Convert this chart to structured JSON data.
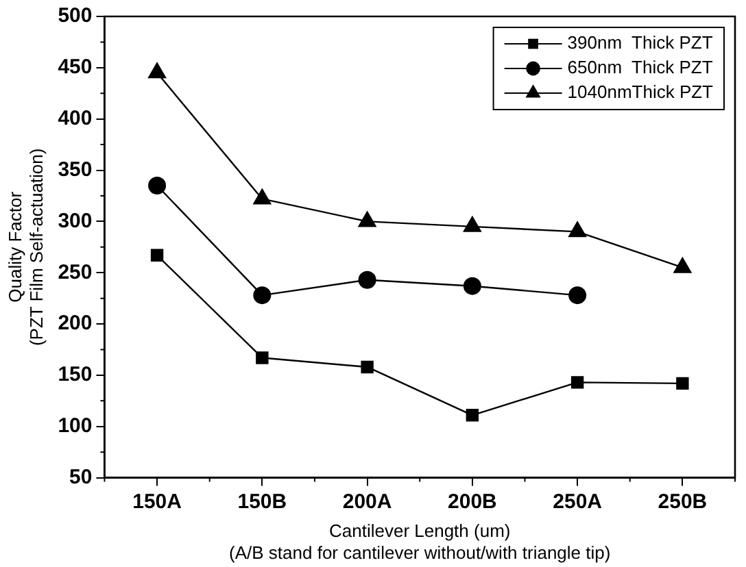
{
  "chart_data": {
    "type": "line",
    "xlabel": "Cantilever Length (um)\n(A/B stand for cantilever without/with triangle tip)",
    "ylabel": "Quality Factor\n(PZT Film Self-actuation)",
    "categories": [
      "150A",
      "150B",
      "200A",
      "200B",
      "250A",
      "250B"
    ],
    "series": [
      {
        "name": "390nm  Thick PZT",
        "color": "#000000",
        "marker": "square",
        "values": [
          267,
          167,
          158,
          111,
          143,
          142
        ]
      },
      {
        "name": "650nm  Thick PZT",
        "color": "#000000",
        "marker": "circle",
        "values": [
          335,
          228,
          243,
          237,
          228,
          null
        ]
      },
      {
        "name": "1040nmThick PZT",
        "color": "#000000",
        "marker": "triangle",
        "values": [
          445,
          322,
          300,
          295,
          290,
          255
        ]
      }
    ],
    "ylim": [
      50,
      500
    ],
    "yticks": [
      50,
      100,
      150,
      200,
      250,
      300,
      350,
      400,
      450,
      500
    ],
    "grid": false,
    "legend": "top right",
    "line_style": "solid"
  }
}
